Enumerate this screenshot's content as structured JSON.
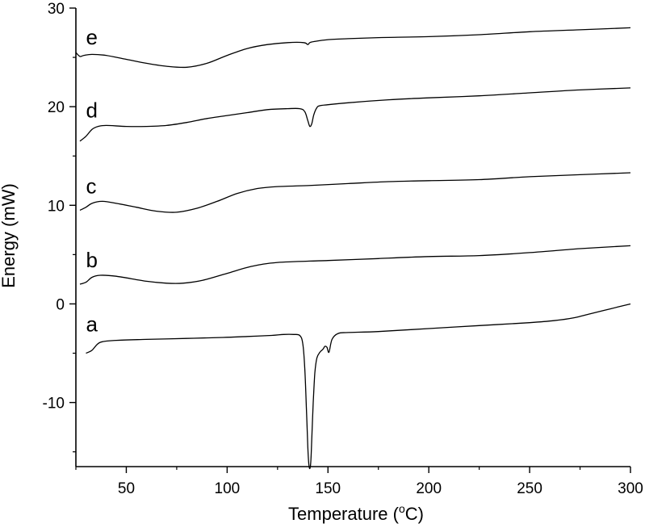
{
  "chart_data": {
    "type": "line",
    "title": "",
    "xlabel": "Temperature (°C)",
    "xlabel_parts": {
      "before": "Temperature (",
      "sup": "o",
      "after": "C)"
    },
    "ylabel": "Energy (mW)",
    "xlim": [
      25,
      300
    ],
    "ylim": [
      -16.5,
      30
    ],
    "x_ticks": [
      50,
      100,
      150,
      200,
      250,
      300
    ],
    "y_ticks": [
      -10,
      0,
      10,
      20,
      30
    ],
    "grid": false,
    "line_color": "#000000",
    "series": [
      {
        "name": "a",
        "x": [
          30,
          33,
          37,
          45,
          60,
          80,
          98,
          110,
          122,
          128,
          133,
          136,
          137.5,
          138.5,
          139.3,
          140,
          140.5,
          141,
          141.5,
          142,
          142.7,
          143.5,
          144.5,
          146,
          147.5,
          148.5,
          149.5,
          150.5,
          152,
          155,
          160,
          175,
          200,
          225,
          250,
          262,
          272,
          280,
          290,
          300
        ],
        "y": [
          -5.0,
          -4.7,
          -3.9,
          -3.7,
          -3.6,
          -3.5,
          -3.4,
          -3.3,
          -3.2,
          -3.1,
          -3.1,
          -3.2,
          -4.0,
          -6.5,
          -10.5,
          -14.5,
          -16.2,
          -16.7,
          -16.0,
          -13.5,
          -10.0,
          -7.0,
          -5.5,
          -4.9,
          -4.6,
          -4.3,
          -4.4,
          -4.9,
          -3.6,
          -3.0,
          -2.9,
          -2.8,
          -2.5,
          -2.2,
          -1.9,
          -1.7,
          -1.4,
          -1.0,
          -0.5,
          0.0
        ]
      },
      {
        "name": "b",
        "x": [
          27,
          30,
          33,
          37,
          45,
          60,
          70,
          78,
          88,
          100,
          112,
          125,
          150,
          175,
          200,
          225,
          250,
          275,
          300
        ],
        "y": [
          2.0,
          2.2,
          2.7,
          2.9,
          2.8,
          2.3,
          2.1,
          2.1,
          2.4,
          3.1,
          3.8,
          4.2,
          4.4,
          4.6,
          4.8,
          4.9,
          5.2,
          5.6,
          5.9
        ]
      },
      {
        "name": "c",
        "x": [
          27,
          30,
          33,
          38,
          45,
          55,
          65,
          75,
          85,
          95,
          105,
          115,
          125,
          140,
          160,
          180,
          200,
          225,
          250,
          275,
          300
        ],
        "y": [
          9.5,
          9.8,
          10.2,
          10.4,
          10.2,
          9.8,
          9.4,
          9.3,
          9.7,
          10.4,
          11.2,
          11.7,
          11.9,
          12.0,
          12.2,
          12.4,
          12.5,
          12.6,
          12.9,
          13.1,
          13.3
        ],
        "label_pos": [
          30,
          12.5
        ]
      },
      {
        "name": "d",
        "x": [
          27,
          30,
          33,
          36,
          40,
          50,
          60,
          70,
          80,
          90,
          100,
          110,
          120,
          130,
          136,
          138.5,
          140,
          141,
          142,
          143,
          144.5,
          146,
          150,
          160,
          180,
          200,
          225,
          250,
          275,
          300
        ],
        "y": [
          16.5,
          17.0,
          17.7,
          18.0,
          18.1,
          18.0,
          18.0,
          18.1,
          18.4,
          18.8,
          19.1,
          19.4,
          19.7,
          19.8,
          19.8,
          19.5,
          18.6,
          18.0,
          18.3,
          19.2,
          19.9,
          20.1,
          20.2,
          20.4,
          20.7,
          20.9,
          21.1,
          21.4,
          21.7,
          21.9
        ]
      },
      {
        "name": "e",
        "x": [
          25,
          27,
          29,
          33,
          40,
          50,
          60,
          70,
          80,
          90,
          100,
          110,
          120,
          130,
          138,
          140,
          141,
          143,
          150,
          160,
          175,
          200,
          225,
          250,
          275,
          300
        ],
        "y": [
          25.5,
          25.1,
          25.2,
          25.3,
          25.2,
          24.8,
          24.4,
          24.1,
          24.0,
          24.4,
          25.2,
          25.9,
          26.3,
          26.5,
          26.5,
          26.3,
          26.5,
          26.6,
          26.8,
          26.9,
          27.0,
          27.1,
          27.3,
          27.6,
          27.8,
          28.0
        ]
      }
    ]
  }
}
